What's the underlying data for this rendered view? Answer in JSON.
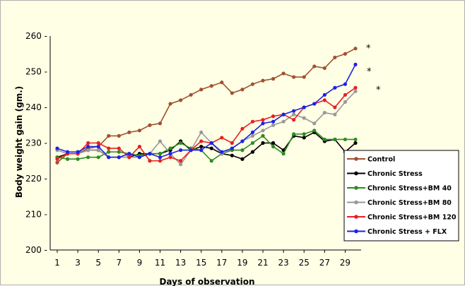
{
  "chart_data": {
    "type": "line",
    "title": "",
    "xlabel": "Days of observation",
    "ylabel": "Body weight gain (gm.)",
    "ylim": [
      200,
      260
    ],
    "xlim": [
      1,
      30
    ],
    "y_ticks": [
      200,
      210,
      220,
      230,
      240,
      250,
      260
    ],
    "y_tick_labels": [
      "200 -",
      "210 -",
      "220 -",
      "230 -",
      "240 -",
      "250 -",
      "260 -"
    ],
    "x_ticks": [
      1,
      3,
      5,
      7,
      9,
      11,
      13,
      15,
      17,
      19,
      21,
      23,
      25,
      27,
      29
    ],
    "x_tick_labels": [
      "1",
      "3",
      "5",
      "7",
      "9",
      "11",
      "13",
      "15",
      "17",
      "19",
      "21",
      "23",
      "25",
      "27",
      "29"
    ],
    "grid": false,
    "legend_position": "bottom-right",
    "x": [
      1,
      2,
      3,
      4,
      5,
      6,
      7,
      8,
      9,
      10,
      11,
      12,
      13,
      14,
      15,
      16,
      17,
      18,
      19,
      20,
      21,
      22,
      23,
      24,
      25,
      26,
      27,
      28,
      29,
      30
    ],
    "series": [
      {
        "name": "Control",
        "color": "#a0522d",
        "marker": "circle",
        "values": [
          224.5,
          227,
          227,
          228.5,
          229,
          232,
          232,
          233,
          233.5,
          235,
          235.5,
          241,
          242,
          243.5,
          245,
          246,
          247,
          244,
          245,
          246.5,
          247.5,
          248,
          249.5,
          248.5,
          248.5,
          251.5,
          251,
          254,
          255,
          256.5
        ]
      },
      {
        "name": "Chronic Stress",
        "color": "#000000",
        "marker": "circle",
        "values": [
          226,
          227,
          227,
          228,
          228,
          226,
          226,
          226,
          227,
          227,
          227,
          228,
          230.5,
          228,
          229,
          228.5,
          227,
          226.5,
          225.5,
          227.5,
          230,
          230,
          228,
          232,
          231.5,
          233,
          230.5,
          231,
          227.5,
          230
        ]
      },
      {
        "name": "Chronic Stress+BM 40",
        "color": "#2e8b22",
        "marker": "circle",
        "values": [
          226,
          225.5,
          225.5,
          226,
          226,
          227.5,
          227.5,
          227,
          226.5,
          227,
          227,
          228.5,
          230,
          228.5,
          228,
          225,
          227,
          228,
          228,
          230,
          232,
          229,
          227,
          232.5,
          232.5,
          233.5,
          231,
          231,
          231,
          231
        ]
      },
      {
        "name": "Chronic Stress+BM 80",
        "color": "#999999",
        "marker": "circle",
        "values": [
          228,
          227,
          227,
          228,
          228,
          226,
          226,
          226,
          226,
          227,
          230.5,
          227,
          224,
          228,
          233,
          230,
          227,
          228.5,
          230.5,
          232,
          233.5,
          235,
          236,
          238,
          237,
          235.5,
          238.5,
          238,
          241.5,
          244.5
        ]
      },
      {
        "name": "Chronic Stress+BM 120",
        "color": "#e82020",
        "marker": "circle",
        "values": [
          225.5,
          227,
          227,
          230,
          230,
          228.5,
          228.5,
          226,
          229,
          225,
          225,
          226,
          225,
          228,
          230.5,
          230,
          231.5,
          230,
          234,
          236,
          236.5,
          237.5,
          238,
          236.5,
          240,
          241,
          242,
          240,
          243.5,
          245.5
        ]
      },
      {
        "name": "Chronic Stress + FLX",
        "color": "#1e22e6",
        "marker": "circle",
        "values": [
          228.5,
          227.5,
          227.5,
          229,
          229,
          226,
          226,
          227,
          226,
          227,
          226,
          227,
          228,
          228,
          228,
          230,
          227.5,
          228.5,
          230.5,
          233,
          235.5,
          236,
          238,
          239,
          240,
          241,
          243.5,
          245.5,
          246.5,
          252
        ]
      }
    ],
    "annotations": [
      {
        "text": "*",
        "series": "Control"
      },
      {
        "text": "*",
        "series": "Chronic Stress + FLX"
      },
      {
        "text": "*",
        "series": "Chronic Stress+BM 80"
      }
    ]
  }
}
